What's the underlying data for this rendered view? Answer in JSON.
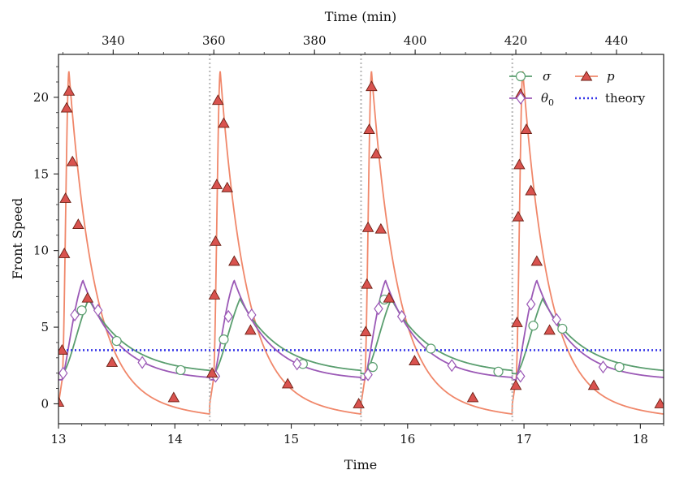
{
  "colors": {
    "sigma": "#5a9e6f",
    "theta": "#9b59b6",
    "p": "#f0876a",
    "p_marker": "#d9534f",
    "theory": "#3535e8",
    "vline": "#bbbbbb"
  },
  "chart_data": {
    "type": "line",
    "xlabel": "Time",
    "ylabel": "Front Speed",
    "top_xlabel": "Time (min)",
    "xlim": [
      13,
      18.2
    ],
    "ylim": [
      -1.3,
      22.8
    ],
    "x_ticks": [
      "13",
      "14",
      "15",
      "16",
      "17",
      "18"
    ],
    "x_tick_values": [
      13,
      14,
      15,
      16,
      17,
      18
    ],
    "y_ticks": [
      "0",
      "5",
      "10",
      "15",
      "20"
    ],
    "y_tick_values": [
      0,
      5,
      10,
      15,
      20
    ],
    "top_ticks": [
      "340",
      "360",
      "380",
      "400",
      "420",
      "440"
    ],
    "top_tick_values": [
      13.47,
      14.335,
      15.2,
      16.065,
      16.93,
      17.795
    ],
    "vlines": [
      14.3,
      15.6,
      16.9
    ],
    "theory_value": 3.5,
    "series": [
      {
        "name": "σ",
        "legend": "σ",
        "marker": "circle",
        "points": [
          [
            13.2,
            6.1
          ],
          [
            13.5,
            4.1
          ],
          [
            14.05,
            2.2
          ],
          [
            14.42,
            4.2
          ],
          [
            15.1,
            2.6
          ],
          [
            15.7,
            2.4
          ],
          [
            15.8,
            6.8
          ],
          [
            16.2,
            3.6
          ],
          [
            16.78,
            2.1
          ],
          [
            17.08,
            5.1
          ],
          [
            17.33,
            4.9
          ],
          [
            17.82,
            2.4
          ]
        ]
      },
      {
        "name": "θ0",
        "legend": "θ",
        "legend_sub": "0",
        "marker": "diamond",
        "points": [
          [
            13.04,
            2.0
          ],
          [
            13.14,
            5.8
          ],
          [
            13.34,
            6.1
          ],
          [
            13.72,
            2.7
          ],
          [
            14.35,
            1.8
          ],
          [
            14.46,
            5.7
          ],
          [
            14.66,
            5.8
          ],
          [
            15.05,
            2.6
          ],
          [
            15.66,
            1.9
          ],
          [
            15.75,
            6.2
          ],
          [
            15.95,
            5.7
          ],
          [
            16.38,
            2.5
          ],
          [
            16.97,
            1.8
          ],
          [
            17.06,
            6.5
          ],
          [
            17.28,
            5.5
          ],
          [
            17.68,
            2.4
          ]
        ]
      },
      {
        "name": "p",
        "legend": "p",
        "marker": "triangle",
        "points": [
          [
            13.0,
            0.1
          ],
          [
            13.03,
            3.5
          ],
          [
            13.05,
            9.8
          ],
          [
            13.06,
            13.4
          ],
          [
            13.07,
            19.3
          ],
          [
            13.09,
            20.4
          ],
          [
            13.12,
            15.8
          ],
          [
            13.17,
            11.7
          ],
          [
            13.25,
            6.9
          ],
          [
            13.46,
            2.7
          ],
          [
            13.99,
            0.4
          ],
          [
            14.32,
            2.0
          ],
          [
            14.34,
            7.1
          ],
          [
            14.35,
            10.6
          ],
          [
            14.36,
            14.3
          ],
          [
            14.37,
            19.8
          ],
          [
            14.42,
            18.3
          ],
          [
            14.45,
            14.1
          ],
          [
            14.51,
            9.3
          ],
          [
            14.65,
            4.8
          ],
          [
            14.97,
            1.3
          ],
          [
            15.58,
            0.0
          ],
          [
            15.64,
            4.7
          ],
          [
            15.65,
            7.8
          ],
          [
            15.66,
            11.5
          ],
          [
            15.67,
            17.9
          ],
          [
            15.69,
            20.7
          ],
          [
            15.73,
            16.3
          ],
          [
            15.77,
            11.4
          ],
          [
            15.84,
            6.9
          ],
          [
            16.06,
            2.8
          ],
          [
            16.56,
            0.4
          ],
          [
            16.93,
            1.2
          ],
          [
            16.94,
            5.3
          ],
          [
            16.95,
            12.2
          ],
          [
            16.96,
            15.6
          ],
          [
            16.97,
            20.2
          ],
          [
            17.02,
            17.9
          ],
          [
            17.06,
            13.9
          ],
          [
            17.11,
            9.3
          ],
          [
            17.22,
            4.8
          ],
          [
            17.6,
            1.2
          ],
          [
            18.17,
            0.0
          ]
        ]
      }
    ],
    "theory_legend": "theory"
  }
}
